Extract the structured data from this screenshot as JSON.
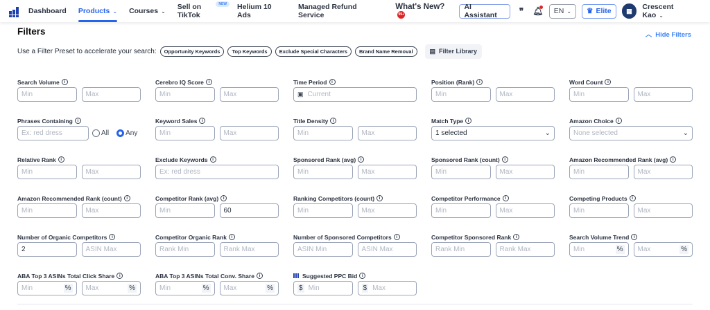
{
  "nav": {
    "items": [
      {
        "label": "Dashboard",
        "active": false
      },
      {
        "label": "Products",
        "active": true,
        "dropdown": true
      },
      {
        "label": "Courses",
        "dropdown": true
      },
      {
        "label": "Sell on TikTok",
        "badge": "NEW"
      },
      {
        "label": "Helium 10 Ads"
      },
      {
        "label": "Managed Refund Service"
      }
    ],
    "whats_new": "What's New?",
    "whats_new_badge": "99+",
    "ai_assistant": "AI Assistant",
    "language": "EN",
    "plan": "Elite",
    "user_name": "Crescent Kao"
  },
  "page": {
    "title": "Filters",
    "hide_filters": "Hide Filters",
    "preset_prompt": "Use a Filter Preset to accelerate your search:",
    "presets": [
      "Opportunity Keywords",
      "Top Keywords",
      "Exclude Special Characters",
      "Brand Name Removal"
    ],
    "filter_library": "Filter Library"
  },
  "fields": [
    {
      "label": "Search Volume",
      "inputs": [
        {
          "ph": "Min"
        },
        {
          "ph": "Max"
        }
      ]
    },
    {
      "label": "Cerebro IQ Score",
      "inputs": [
        {
          "ph": "Min"
        },
        {
          "ph": "Max"
        }
      ]
    },
    {
      "label": "Time Period",
      "inputs": [
        {
          "ph": "Current",
          "icon": "calendar"
        }
      ]
    },
    {
      "label": "Position (Rank)",
      "inputs": [
        {
          "ph": "Min"
        },
        {
          "ph": "Max"
        }
      ]
    },
    {
      "label": "Word Count",
      "inputs": [
        {
          "ph": "Min"
        },
        {
          "ph": "Max"
        }
      ]
    },
    {
      "label": "Phrases Containing",
      "inputs": [
        {
          "ph": "Ex: red dress"
        }
      ],
      "radios": [
        {
          "label": "All",
          "checked": false
        },
        {
          "label": "Any",
          "checked": true
        }
      ]
    },
    {
      "label": "Keyword Sales",
      "inputs": [
        {
          "ph": "Min"
        },
        {
          "ph": "Max"
        }
      ]
    },
    {
      "label": "Title Density",
      "inputs": [
        {
          "ph": "Min"
        },
        {
          "ph": "Max"
        }
      ]
    },
    {
      "label": "Match Type",
      "inputs": [
        {
          "val": "1 selected",
          "select": true
        }
      ]
    },
    {
      "label": "Amazon Choice",
      "inputs": [
        {
          "ph": "None selected",
          "select": true
        }
      ]
    },
    {
      "label": "Relative Rank",
      "inputs": [
        {
          "ph": "Min"
        },
        {
          "ph": "Max"
        }
      ]
    },
    {
      "label": "Exclude Keywords",
      "inputs": [
        {
          "ph": "Ex: red dress"
        }
      ]
    },
    {
      "label": "Sponsored Rank (avg)",
      "inputs": [
        {
          "ph": "Min"
        },
        {
          "ph": "Max"
        }
      ]
    },
    {
      "label": "Sponsored Rank (count)",
      "inputs": [
        {
          "ph": "Min"
        },
        {
          "ph": "Max"
        }
      ]
    },
    {
      "label": "Amazon Recommended Rank (avg)",
      "inputs": [
        {
          "ph": "Min"
        },
        {
          "ph": "Max"
        }
      ]
    },
    {
      "label": "Amazon Recommended Rank (count)",
      "inputs": [
        {
          "ph": "Min"
        },
        {
          "ph": "Max"
        }
      ]
    },
    {
      "label": "Competitor Rank (avg)",
      "inputs": [
        {
          "ph": "Min"
        },
        {
          "val": "60"
        }
      ]
    },
    {
      "label": "Ranking Competitors (count)",
      "inputs": [
        {
          "ph": "Min"
        },
        {
          "ph": "Max"
        }
      ]
    },
    {
      "label": "Competitor Performance",
      "inputs": [
        {
          "ph": "Min"
        },
        {
          "ph": "Max"
        }
      ]
    },
    {
      "label": "Competing Products",
      "inputs": [
        {
          "ph": "Min"
        },
        {
          "ph": "Max"
        }
      ]
    },
    {
      "label": "Number of Organic Competitors",
      "inputs": [
        {
          "val": "2"
        },
        {
          "ph": "ASIN Max"
        }
      ]
    },
    {
      "label": "Competitor Organic Rank",
      "inputs": [
        {
          "ph": "Rank Min"
        },
        {
          "ph": "Rank Max"
        }
      ]
    },
    {
      "label": "Number of Sponsored Competitors",
      "inputs": [
        {
          "ph": "ASIN Min"
        },
        {
          "ph": "ASIN Max"
        }
      ]
    },
    {
      "label": "Competitor Sponsored Rank",
      "inputs": [
        {
          "ph": "Rank Min"
        },
        {
          "ph": "Rank Max"
        }
      ]
    },
    {
      "label": "Search Volume Trend",
      "inputs": [
        {
          "ph": "Min",
          "sfx": "%"
        },
        {
          "ph": "Max",
          "sfx": "%"
        }
      ]
    },
    {
      "label": "ABA Top 3 ASINs Total Click Share",
      "inputs": [
        {
          "ph": "Min",
          "sfx": "%"
        },
        {
          "ph": "Max",
          "sfx": "%"
        }
      ]
    },
    {
      "label": "ABA Top 3 ASINs Total Conv. Share",
      "inputs": [
        {
          "ph": "Min",
          "sfx": "%"
        },
        {
          "ph": "Max",
          "sfx": "%"
        }
      ]
    },
    {
      "label": "Suggested PPC Bid",
      "ppc_icon": true,
      "inputs": [
        {
          "ph": "Min",
          "pfx": "$"
        },
        {
          "ph": "Max",
          "pfx": "$"
        }
      ]
    }
  ]
}
